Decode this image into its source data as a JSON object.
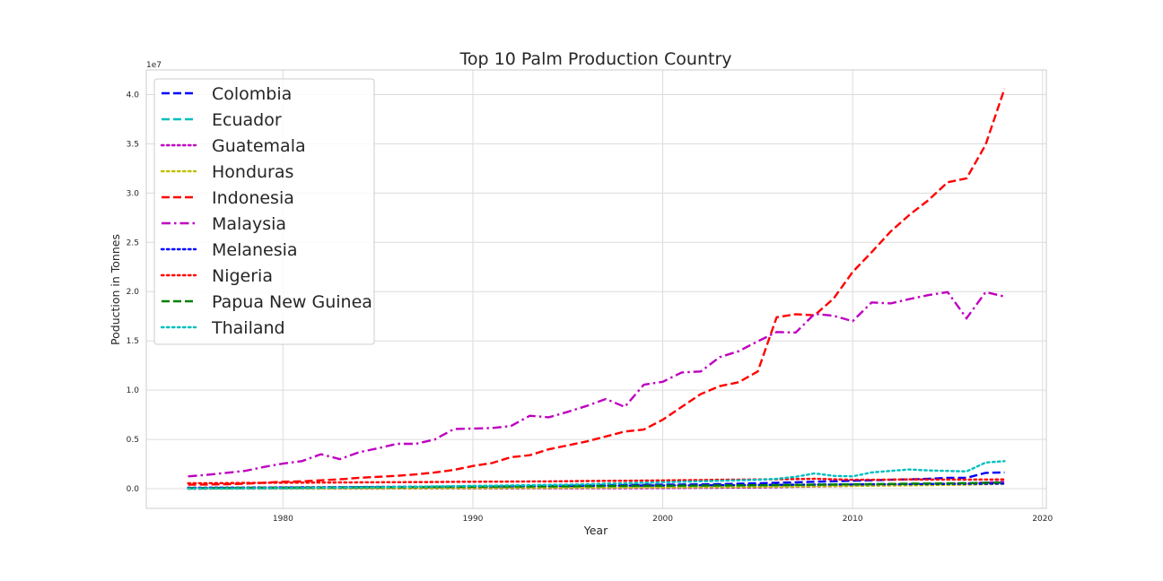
{
  "chart_data": {
    "type": "line",
    "title": "Top 10 Palm Production Country",
    "xlabel": "Year",
    "ylabel": "Poduction in Tonnes",
    "y_scale_label": "1e7",
    "xlim": [
      1972.8,
      2020.2
    ],
    "ylim": [
      -2000000,
      42500000
    ],
    "x_ticks": [
      1980,
      1990,
      2000,
      2010,
      2020
    ],
    "y_ticks": [
      0,
      5000000,
      10000000,
      15000000,
      20000000,
      25000000,
      30000000,
      35000000,
      40000000
    ],
    "y_tick_labels": [
      "0.0",
      "0.5",
      "1.0",
      "1.5",
      "2.0",
      "2.5",
      "3.0",
      "3.5",
      "4.0"
    ],
    "grid": true,
    "legend_position": "upper-left",
    "x": [
      1975,
      1976,
      1977,
      1978,
      1979,
      1980,
      1981,
      1982,
      1983,
      1984,
      1985,
      1986,
      1987,
      1988,
      1989,
      1990,
      1991,
      1992,
      1993,
      1994,
      1995,
      1996,
      1997,
      1998,
      1999,
      2000,
      2001,
      2002,
      2003,
      2004,
      2005,
      2006,
      2007,
      2008,
      2009,
      2010,
      2011,
      2012,
      2013,
      2014,
      2015,
      2016,
      2017,
      2018
    ],
    "series": [
      {
        "name": "Colombia",
        "color": "#0000ff",
        "dash": "dashed",
        "values": [
          50000,
          60000,
          70000,
          80000,
          90000,
          100000,
          110000,
          120000,
          130000,
          140000,
          150000,
          160000,
          170000,
          180000,
          190000,
          200000,
          220000,
          240000,
          260000,
          280000,
          300000,
          320000,
          340000,
          360000,
          380000,
          400000,
          420000,
          440000,
          460000,
          500000,
          550000,
          600000,
          650000,
          700000,
          750000,
          800000,
          850000,
          900000,
          950000,
          1000000,
          1100000,
          1100000,
          1600000,
          1650000
        ]
      },
      {
        "name": "Ecuador",
        "color": "#00bfbf",
        "dash": "dashed",
        "values": [
          20000,
          25000,
          30000,
          35000,
          40000,
          50000,
          60000,
          70000,
          80000,
          90000,
          100000,
          110000,
          120000,
          130000,
          140000,
          150000,
          160000,
          170000,
          180000,
          190000,
          200000,
          210000,
          220000,
          230000,
          240000,
          250000,
          260000,
          280000,
          300000,
          320000,
          340000,
          360000,
          380000,
          400000,
          420000,
          440000,
          460000,
          480000,
          500000,
          520000,
          540000,
          560000,
          580000,
          600000
        ]
      },
      {
        "name": "Guatemala",
        "color": "#bf00bf",
        "dash": "dotted",
        "values": [
          5000,
          6000,
          7000,
          8000,
          9000,
          10000,
          11000,
          12000,
          13000,
          14000,
          15000,
          16000,
          17000,
          18000,
          19000,
          20000,
          22000,
          24000,
          26000,
          28000,
          30000,
          35000,
          40000,
          45000,
          50000,
          60000,
          70000,
          80000,
          90000,
          100000,
          120000,
          150000,
          180000,
          210000,
          240000,
          280000,
          320000,
          360000,
          400000,
          450000,
          500000,
          550000,
          620000,
          700000
        ]
      },
      {
        "name": "Honduras",
        "color": "#bfbf00",
        "dash": "dotted",
        "values": [
          10000,
          12000,
          14000,
          16000,
          18000,
          20000,
          22000,
          24000,
          26000,
          28000,
          30000,
          35000,
          40000,
          45000,
          50000,
          55000,
          60000,
          65000,
          70000,
          75000,
          80000,
          90000,
          100000,
          110000,
          120000,
          130000,
          140000,
          150000,
          160000,
          170000,
          180000,
          200000,
          220000,
          240000,
          260000,
          280000,
          300000,
          320000,
          340000,
          360000,
          380000,
          400000,
          450000,
          500000
        ]
      },
      {
        "name": "Indonesia",
        "color": "#ff0000",
        "dash": "dashed",
        "values": [
          400000,
          420000,
          450000,
          500000,
          600000,
          700000,
          750000,
          850000,
          950000,
          1100000,
          1200000,
          1300000,
          1450000,
          1650000,
          1900000,
          2300000,
          2600000,
          3200000,
          3400000,
          4000000,
          4400000,
          4800000,
          5300000,
          5800000,
          6000000,
          7000000,
          8300000,
          9600000,
          10400000,
          10800000,
          11900000,
          17400000,
          17700000,
          17600000,
          19300000,
          22000000,
          24000000,
          26100000,
          27800000,
          29300000,
          31100000,
          31500000,
          34900000,
          40600000
        ]
      },
      {
        "name": "Malaysia",
        "color": "#bf00bf",
        "dash": "dashdot",
        "values": [
          1250000,
          1400000,
          1600000,
          1800000,
          2200000,
          2550000,
          2800000,
          3500000,
          3000000,
          3700000,
          4100000,
          4550000,
          4550000,
          5000000,
          6050000,
          6100000,
          6150000,
          6350000,
          7400000,
          7250000,
          7800000,
          8400000,
          9100000,
          8300000,
          10550000,
          10850000,
          11800000,
          11900000,
          13350000,
          13950000,
          14950000,
          15900000,
          15850000,
          17750000,
          17550000,
          17000000,
          18900000,
          18800000,
          19250000,
          19650000,
          19950000,
          17300000,
          19950000,
          19500000
        ]
      },
      {
        "name": "Melanesia",
        "color": "#0000ff",
        "dash": "dotted",
        "values": [
          100000,
          105000,
          110000,
          115000,
          120000,
          130000,
          140000,
          150000,
          160000,
          170000,
          180000,
          190000,
          200000,
          210000,
          220000,
          230000,
          240000,
          250000,
          260000,
          270000,
          280000,
          290000,
          300000,
          310000,
          320000,
          330000,
          340000,
          350000,
          360000,
          370000,
          380000,
          390000,
          400000,
          410000,
          420000,
          430000,
          440000,
          450000,
          460000,
          470000,
          480000,
          490000,
          500000,
          510000
        ]
      },
      {
        "name": "Nigeria",
        "color": "#ff0000",
        "dash": "dotted",
        "values": [
          550000,
          560000,
          570000,
          580000,
          590000,
          600000,
          610000,
          620000,
          630000,
          640000,
          650000,
          660000,
          670000,
          680000,
          690000,
          700000,
          710000,
          720000,
          730000,
          740000,
          760000,
          780000,
          790000,
          800000,
          820000,
          840000,
          860000,
          880000,
          900000,
          920000,
          940000,
          960000,
          980000,
          1000000,
          950000,
          900000,
          900000,
          920000,
          940000,
          930000,
          930000,
          920000,
          930000,
          940000
        ]
      },
      {
        "name": "Papua New Guinea",
        "color": "#008000",
        "dash": "dashed",
        "values": [
          50000,
          60000,
          70000,
          80000,
          90000,
          100000,
          110000,
          120000,
          130000,
          140000,
          150000,
          160000,
          170000,
          180000,
          190000,
          200000,
          210000,
          220000,
          230000,
          240000,
          250000,
          260000,
          270000,
          280000,
          290000,
          300000,
          310000,
          320000,
          330000,
          340000,
          350000,
          360000,
          380000,
          400000,
          420000,
          440000,
          460000,
          480000,
          500000,
          520000,
          540000,
          560000,
          600000,
          620000
        ]
      },
      {
        "name": "Thailand",
        "color": "#00bfbf",
        "dash": "dotted",
        "values": [
          20000,
          25000,
          30000,
          40000,
          50000,
          60000,
          70000,
          90000,
          110000,
          130000,
          150000,
          180000,
          200000,
          230000,
          260000,
          280000,
          300000,
          330000,
          360000,
          380000,
          400000,
          450000,
          500000,
          550000,
          600000,
          650000,
          700000,
          750000,
          800000,
          850000,
          900000,
          1000000,
          1200000,
          1550000,
          1300000,
          1250000,
          1650000,
          1800000,
          1950000,
          1850000,
          1800000,
          1750000,
          2650000,
          2800000
        ]
      }
    ]
  }
}
